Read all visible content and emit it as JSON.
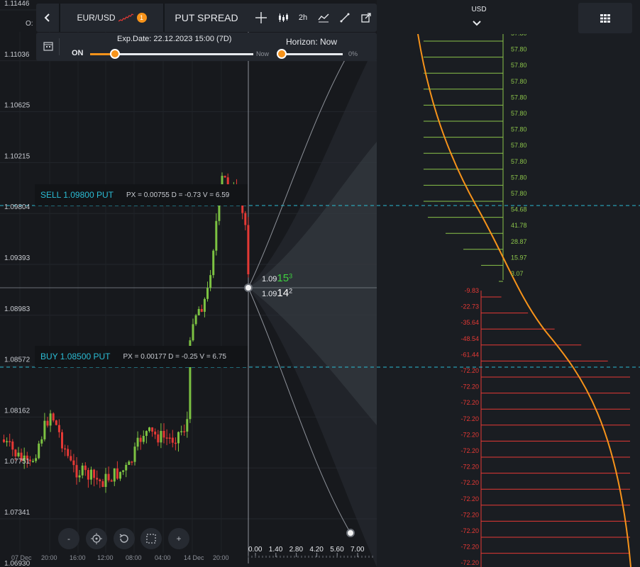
{
  "toolbar": {
    "symbol": "EUR/USD",
    "symbol_badge": "1",
    "strategy": "PUT SPREAD",
    "timeframe": "2h"
  },
  "subbar": {
    "exp_date": "Exp.Date: 22.12.2023 15:00 (7D)",
    "toggle_state": "ON",
    "horizon": "Horizon: Now",
    "now_label": "Now",
    "horizon_value": "0%",
    "exp_slider_position": 0.15,
    "horizon_slider_position": 0.0
  },
  "ohlc_prefix": "O:",
  "price_axis": {
    "labels": [
      "1.11446",
      "1.11036",
      "1.10625",
      "1.10215",
      "1.09804",
      "1.09393",
      "1.08983",
      "1.08572",
      "1.08162",
      "1.07751",
      "1.07341",
      "1.06930"
    ]
  },
  "time_axis": {
    "labels": [
      "07 Dec",
      "20:00",
      "16:00",
      "12:00",
      "08:00",
      "04:00",
      "14 Dec",
      "20:00"
    ]
  },
  "positions": [
    {
      "label": "SELL 1.09800 PUT",
      "info": "PX = 0.00755 D = -0.73 V = 6.59"
    },
    {
      "label": "BUY 1.08500 PUT",
      "info": "PX = 0.00177 D = -0.25 V = 6.75"
    }
  ],
  "quote": {
    "ask_prefix": "1.09",
    "ask_big": "15",
    "ask_sup": "3",
    "bid_prefix": "1.09",
    "bid_big": "14",
    "bid_sup": "2"
  },
  "days_axis": {
    "labels": [
      "0.00",
      "1.40",
      "2.80",
      "4.20",
      "5.60",
      "7.00"
    ]
  },
  "payoff": {
    "currency": "USD",
    "profit_labels": [
      "57.80",
      "57.80",
      "57.80",
      "57.80",
      "57.80",
      "57.80",
      "57.80",
      "57.80",
      "57.80",
      "57.80",
      "57.80",
      "54.68",
      "41.78",
      "28.87",
      "15.97",
      "3.07"
    ],
    "loss_labels": [
      "-9.83",
      "-22.73",
      "-35.64",
      "-48.54",
      "-61.44",
      "-72.20",
      "-72.20",
      "-72.20",
      "-72.20",
      "-72.20",
      "-72.20",
      "-72.20",
      "-72.20",
      "-72.20",
      "-72.20",
      "-72.20",
      "-72.20",
      "-72.20"
    ]
  },
  "colors": {
    "up": "#7cc242",
    "down": "#e53935",
    "accent": "#f7931a",
    "dashed": "#2bbcd4",
    "profit": "#8bc34a",
    "loss": "#e53935"
  },
  "icons": [
    "back-icon",
    "sparkline-icon",
    "crosshair-icon",
    "candles-icon",
    "line-chart-icon",
    "draw-line-icon",
    "external-link-icon",
    "calendar-icon",
    "chevron-down-icon",
    "grid-icon",
    "minus-icon",
    "target-icon",
    "reset-icon",
    "select-icon",
    "plus-icon"
  ]
}
